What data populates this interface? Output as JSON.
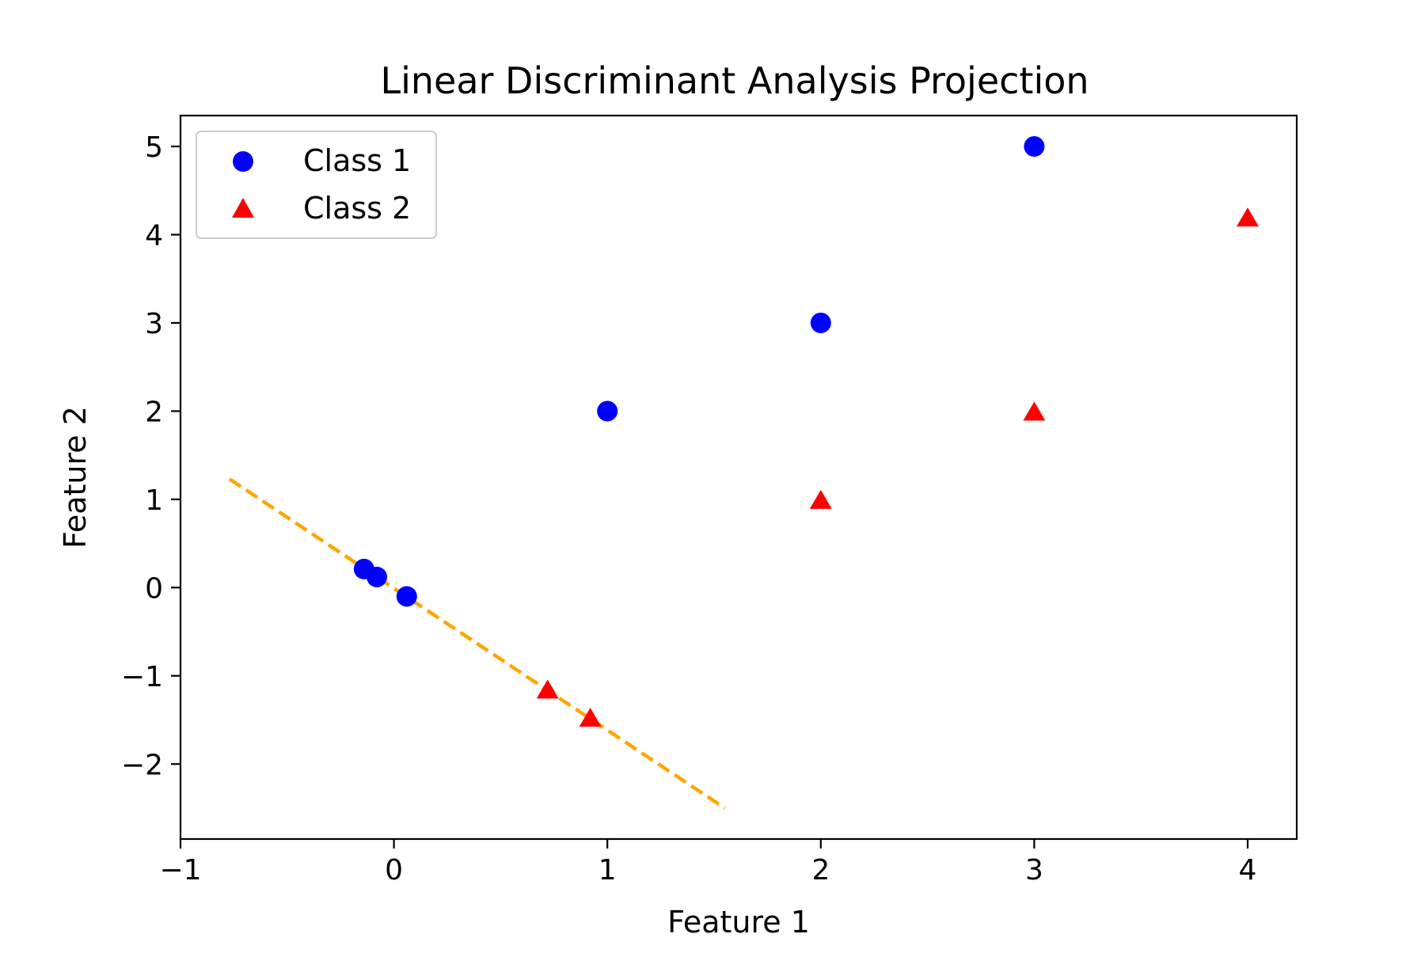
{
  "chart_data": {
    "type": "scatter",
    "title": "Linear Discriminant Analysis Projection",
    "xlabel": "Feature 1",
    "ylabel": "Feature 2",
    "xlim": [
      -1,
      4.23
    ],
    "ylim": [
      -2.85,
      5.35
    ],
    "x_ticks": [
      -1,
      0,
      1,
      2,
      3,
      4
    ],
    "x_tick_labels": [
      "−1",
      "0",
      "1",
      "2",
      "3",
      "4"
    ],
    "y_ticks": [
      -2,
      -1,
      0,
      1,
      2,
      3,
      4,
      5
    ],
    "y_tick_labels": [
      "−2",
      "−1",
      "0",
      "1",
      "2",
      "3",
      "4",
      "5"
    ],
    "grid": false,
    "legend_position": "top-left",
    "series": [
      {
        "name": "Class 1",
        "marker": "circle",
        "color": "#0000ff",
        "points": [
          [
            1,
            2
          ],
          [
            2,
            3
          ],
          [
            3,
            5
          ]
        ]
      },
      {
        "name": "Class 2",
        "marker": "triangle",
        "color": "#ff0000",
        "points": [
          [
            2,
            1
          ],
          [
            3,
            2
          ],
          [
            4,
            4.2
          ]
        ]
      },
      {
        "marker": "circle",
        "color": "#0000ff",
        "points": [
          [
            -0.14,
            0.21
          ],
          [
            -0.08,
            0.12
          ],
          [
            0.06,
            -0.1
          ]
        ]
      },
      {
        "marker": "triangle",
        "color": "#ff0000",
        "points": [
          [
            0.72,
            -1.15
          ],
          [
            0.92,
            -1.47
          ]
        ]
      }
    ],
    "lines": [
      {
        "style": "dashed",
        "color": "#ffa500",
        "points": [
          [
            -0.77,
            1.23
          ],
          [
            1.55,
            -2.5
          ]
        ]
      }
    ]
  }
}
